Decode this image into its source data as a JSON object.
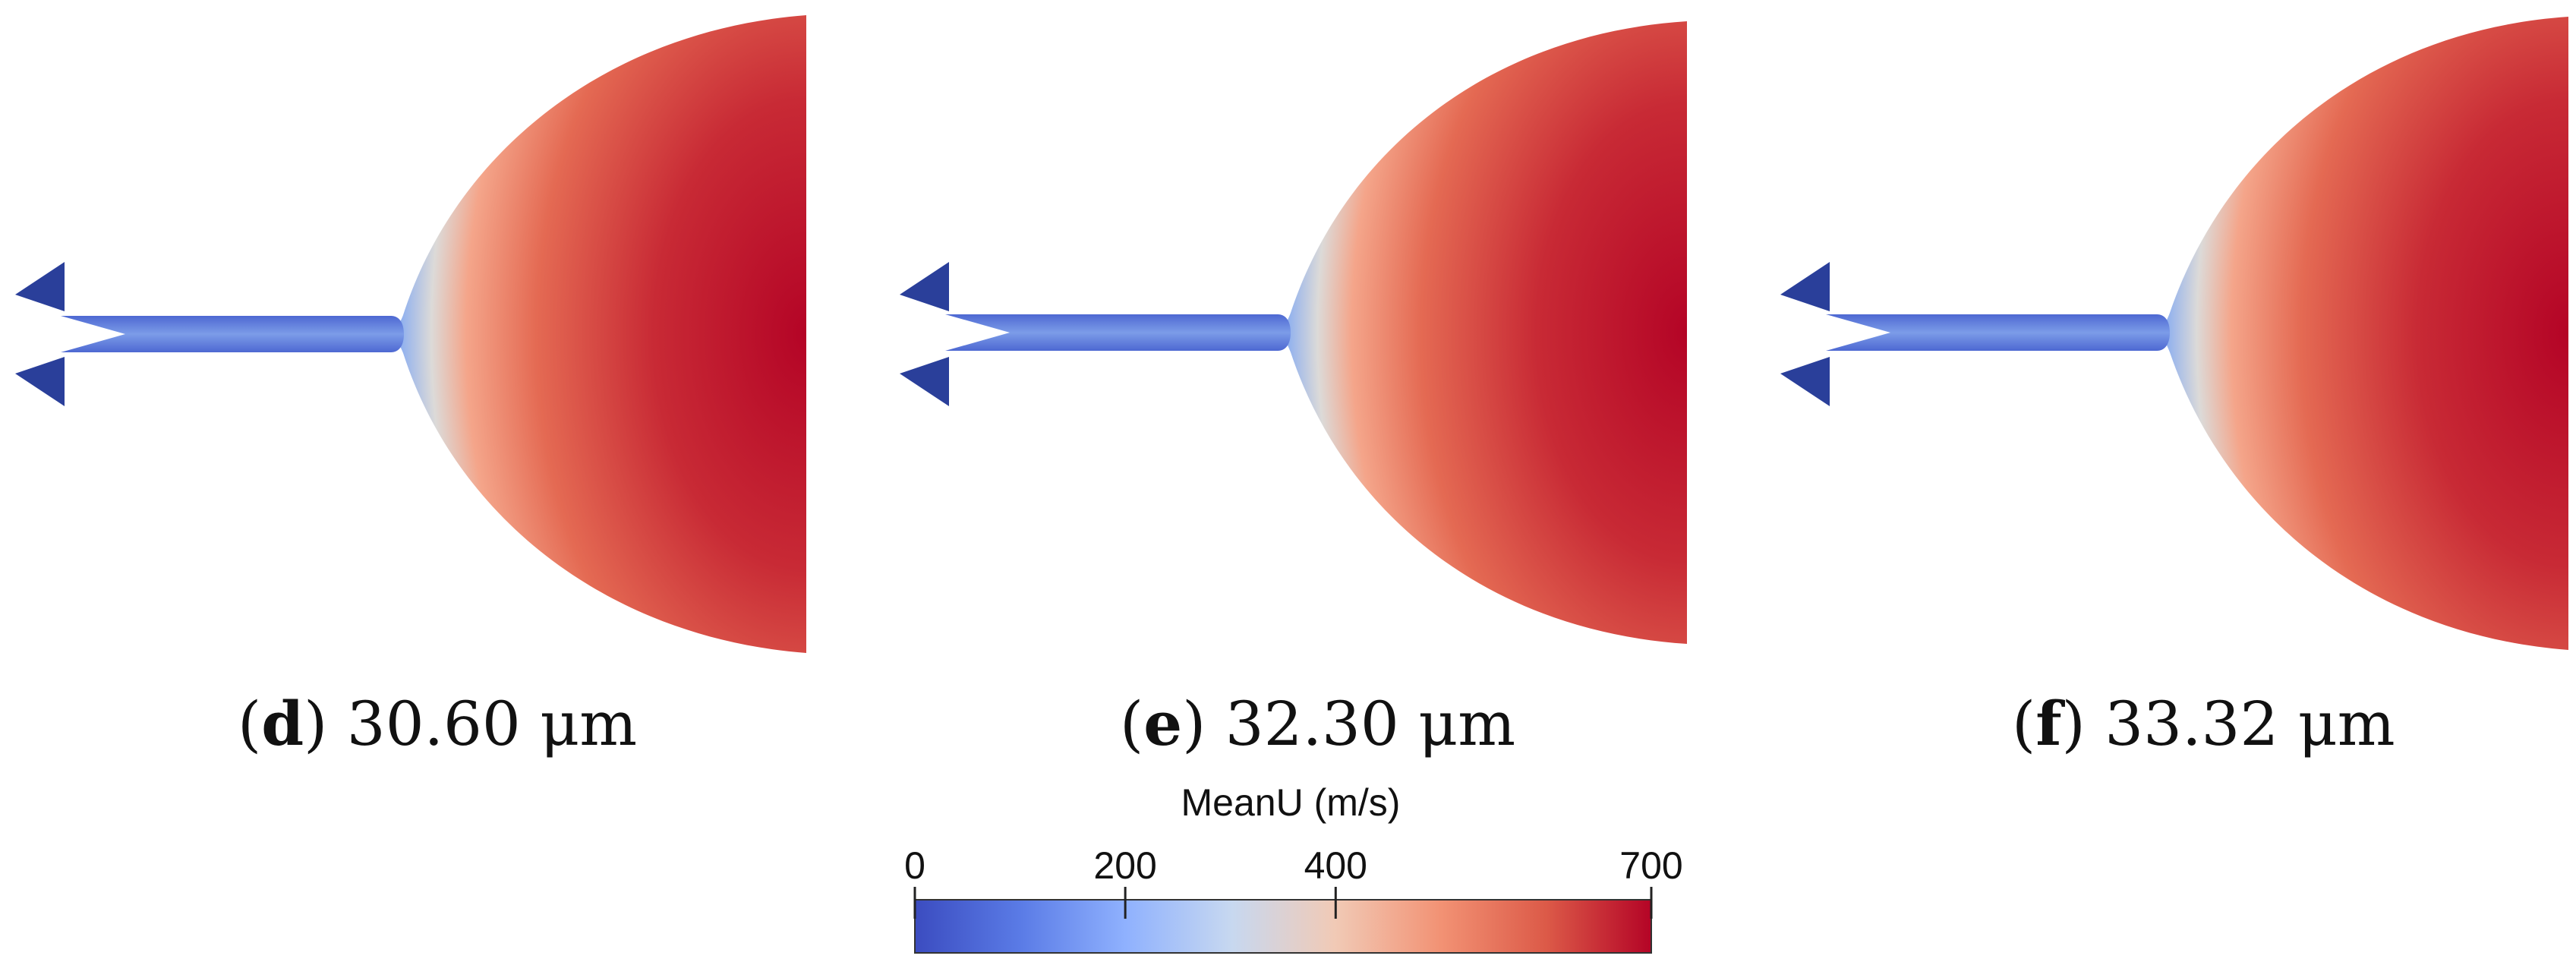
{
  "panels": [
    {
      "letter": "d",
      "value_text": "30.60 μm"
    },
    {
      "letter": "e",
      "value_text": "32.30 μm"
    },
    {
      "letter": "f",
      "value_text": "33.32 μm"
    }
  ],
  "colorbar": {
    "title": "MeanU (m/s)",
    "min": 0,
    "max": 700,
    "ticks": [
      {
        "value": 0,
        "label": "0"
      },
      {
        "value": 200,
        "label": "200"
      },
      {
        "value": 400,
        "label": "400"
      },
      {
        "value": 700,
        "label": "700"
      }
    ],
    "colormap": [
      "#3b4cc0",
      "#6f92f3",
      "#aac7fd",
      "#dddcdc",
      "#f7b89c",
      "#e7745b",
      "#d0353e",
      "#b40426"
    ]
  },
  "colors": {
    "low": "#3b4cc0",
    "mid": "#dddcdc",
    "high": "#b40426",
    "marker": "#2a3f9a"
  }
}
